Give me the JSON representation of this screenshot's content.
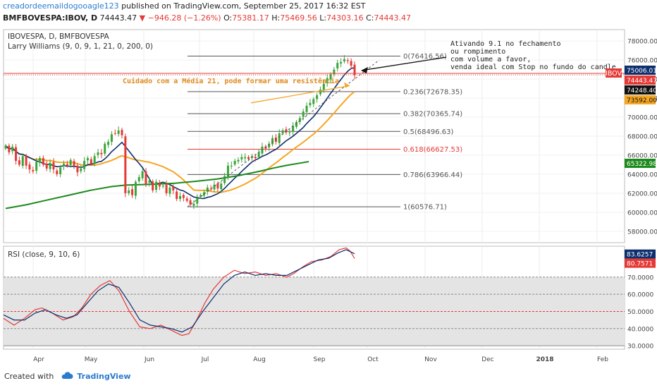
{
  "header": {
    "user": "creadordeemaildogooagle123",
    "published": "published on TradingView.com, September 25, 2017 16:32 EST",
    "symbol": "BMFBOVESPA:IBOV, D",
    "last": "74443.47",
    "change": "−946.28 (−1.26%)",
    "o_label": "O:",
    "o": "75381.17",
    "h_label": "H:",
    "h": "75469.56",
    "l_label": "L:",
    "l": "74303.16",
    "c_label": "C:",
    "c": "74443.47"
  },
  "footer": {
    "created_with": "Created with",
    "brand": "TradingView"
  },
  "chart_data": [
    {
      "type": "candlestick",
      "title": "IBOVESPA, D, BMFBOVESPA",
      "indicator_label": "Larry Williams (9, 0, 9, 1, 21, 0, 200, 0)",
      "symbol_tag": "IBOV",
      "x_ticks": [
        "Apr",
        "May",
        "Jun",
        "Jul",
        "Aug",
        "Sep",
        "Oct",
        "Nov",
        "Dec",
        "2018",
        "Feb"
      ],
      "y_ticks": [
        58000,
        60000,
        62000,
        64000,
        66000,
        68000,
        70000,
        72000,
        74000,
        76000,
        78000
      ],
      "ylim": [
        56800,
        79200
      ],
      "price_tags": [
        {
          "value": "75006.01",
          "color": "#0d2f6e"
        },
        {
          "value": "74443.47",
          "color": "#e53935"
        },
        {
          "value": "74248.40",
          "color": "#111111"
        },
        {
          "value": "73592.00",
          "color": "#f5a623"
        },
        {
          "value": "65322.98",
          "color": "#1b8a1b"
        }
      ],
      "fibonacci": [
        {
          "level": "0",
          "value": 76416.56,
          "color": "#555555"
        },
        {
          "level": "0.236",
          "value": 72678.35,
          "color": "#555555"
        },
        {
          "level": "0.382",
          "value": 70365.74,
          "color": "#555555"
        },
        {
          "level": "0.5",
          "value": 68496.63,
          "color": "#555555"
        },
        {
          "level": "0.618",
          "value": 66627.53,
          "color": "#e53935"
        },
        {
          "level": "0.786",
          "value": 63966.44,
          "color": "#555555"
        },
        {
          "level": "1",
          "value": 60576.71,
          "color": "#555555"
        }
      ],
      "annotations": [
        "Ativando 9.1 no fechamento",
        "ou rompimento",
        "com volume a favor,",
        "venda ideal com Stop no fundo do candle"
      ],
      "warning": "Cuidado com a Média 21, pode formar uma resistência",
      "series_colors": {
        "ma9": "#0d2f6e",
        "ma21": "#f5a623",
        "ma200": "#1b8a1b",
        "up": "#3aa53a",
        "down": "#e53935"
      },
      "closes": [
        67000,
        66300,
        66900,
        65400,
        65000,
        65900,
        64900,
        64500,
        64300,
        65300,
        65700,
        65000,
        64600,
        65200,
        64500,
        64000,
        64700,
        65100,
        64900,
        65500,
        64900,
        64200,
        64600,
        65400,
        65700,
        65100,
        65900,
        66300,
        66100,
        67200,
        67400,
        68200,
        68300,
        68600,
        68100,
        62000,
        62300,
        61800,
        63200,
        63700,
        64300,
        63000,
        63300,
        62300,
        63200,
        62700,
        62800,
        62000,
        62600,
        62300,
        61400,
        61700,
        61500,
        61200,
        60800,
        60900,
        61500,
        61800,
        62100,
        62600,
        62400,
        62900,
        62500,
        63000,
        63800,
        64900,
        64900,
        65400,
        65500,
        65800,
        65800,
        65600,
        65900,
        65700,
        66300,
        66900,
        66700,
        67200,
        67800,
        67400,
        68300,
        68600,
        68400,
        68400,
        69100,
        69500,
        69900,
        70600,
        71200,
        71500,
        71900,
        72300,
        72900,
        73500,
        74100,
        74500,
        75000,
        75700,
        75800,
        76100,
        75900,
        75400,
        74400
      ],
      "ma200_points": [
        [
          0,
          60400
        ],
        [
          30,
          60800
        ],
        [
          60,
          61300
        ],
        [
          90,
          61800
        ],
        [
          120,
          62300
        ],
        [
          150,
          62700
        ],
        [
          170,
          62850
        ],
        [
          190,
          62900
        ],
        [
          210,
          62950
        ],
        [
          240,
          63050
        ],
        [
          270,
          63250
        ],
        [
          300,
          63500
        ],
        [
          330,
          63850
        ],
        [
          360,
          64300
        ],
        [
          380,
          64650
        ],
        [
          400,
          64950
        ],
        [
          420,
          65200
        ],
        [
          430,
          65320
        ]
      ]
    },
    {
      "type": "line",
      "title": "RSI (close, 9, 10, 6)",
      "y_ticks": [
        30,
        40,
        50,
        60,
        70
      ],
      "ylim": [
        28,
        88
      ],
      "price_tags": [
        {
          "value": "83.6257",
          "color": "#0d2f6e"
        },
        {
          "value": "80.7571",
          "color": "#e53935"
        }
      ],
      "series": [
        {
          "name": "",
          "color": "#e53935",
          "points": [
            [
              0,
              46
            ],
            [
              15,
              42
            ],
            [
              30,
              46
            ],
            [
              45,
              51
            ],
            [
              55,
              52
            ],
            [
              70,
              49
            ],
            [
              85,
              45
            ],
            [
              100,
              47
            ],
            [
              112,
              52
            ],
            [
              125,
              60
            ],
            [
              138,
              65
            ],
            [
              152,
              68
            ],
            [
              165,
              62
            ],
            [
              180,
              50
            ],
            [
              195,
              41
            ],
            [
              210,
              40
            ],
            [
              225,
              42
            ],
            [
              240,
              39
            ],
            [
              255,
              36
            ],
            [
              265,
              37
            ],
            [
              275,
              44
            ],
            [
              288,
              55
            ],
            [
              300,
              63
            ],
            [
              315,
              70
            ],
            [
              330,
              74
            ],
            [
              345,
              72
            ],
            [
              360,
              73
            ],
            [
              375,
              71
            ],
            [
              390,
              72
            ],
            [
              405,
              70
            ],
            [
              415,
              72
            ],
            [
              428,
              76
            ],
            [
              440,
              79
            ],
            [
              455,
              80
            ],
            [
              468,
              82
            ],
            [
              480,
              86
            ],
            [
              490,
              87
            ],
            [
              496,
              85
            ],
            [
              502,
              80.8
            ]
          ]
        },
        {
          "name": "",
          "color": "#0d2f6e",
          "points": [
            [
              0,
              48
            ],
            [
              15,
              45
            ],
            [
              30,
              45
            ],
            [
              45,
              49
            ],
            [
              60,
              51
            ],
            [
              75,
              48
            ],
            [
              90,
              46
            ],
            [
              105,
              48
            ],
            [
              120,
              55
            ],
            [
              135,
              62
            ],
            [
              150,
              66
            ],
            [
              165,
              64
            ],
            [
              180,
              55
            ],
            [
              195,
              45
            ],
            [
              210,
              42
            ],
            [
              225,
              41
            ],
            [
              240,
              40
            ],
            [
              255,
              38
            ],
            [
              270,
              41
            ],
            [
              285,
              50
            ],
            [
              300,
              58
            ],
            [
              315,
              66
            ],
            [
              330,
              71
            ],
            [
              345,
              73
            ],
            [
              360,
              71
            ],
            [
              375,
              72
            ],
            [
              390,
              71
            ],
            [
              405,
              71
            ],
            [
              420,
              74
            ],
            [
              435,
              77
            ],
            [
              450,
              80
            ],
            [
              465,
              81
            ],
            [
              478,
              84
            ],
            [
              490,
              86
            ],
            [
              502,
              83.6
            ]
          ]
        }
      ]
    }
  ]
}
